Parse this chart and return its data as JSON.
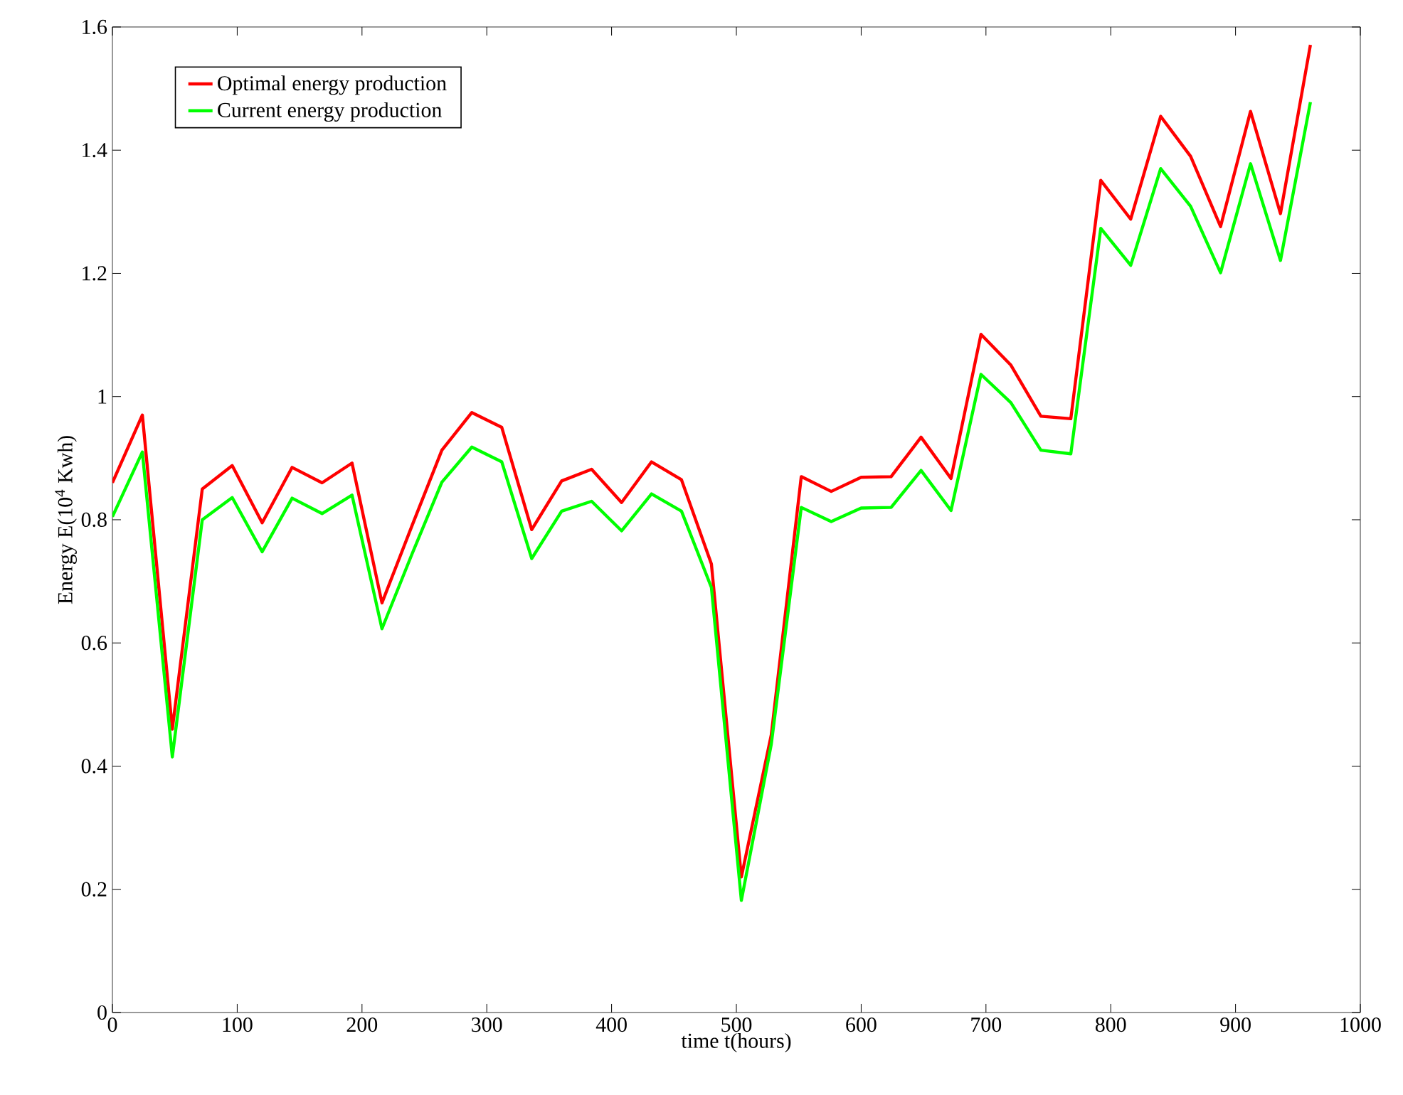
{
  "chart_data": {
    "type": "line",
    "xlabel": "time t(hours)",
    "ylabel": "Energy E(10$^{4}$ Kwh)",
    "x": [
      0,
      24,
      48,
      72,
      96,
      120,
      144,
      168,
      192,
      216,
      240,
      264,
      288,
      312,
      336,
      360,
      384,
      408,
      432,
      456,
      480,
      504,
      528,
      552,
      576,
      600,
      624,
      648,
      672,
      696,
      720,
      744,
      768,
      792,
      816,
      840,
      864,
      888,
      912,
      936,
      960
    ],
    "series": [
      {
        "name": "Optimal energy production",
        "color": "#ff0000",
        "values": [
          0.86,
          0.97,
          0.46,
          0.85,
          0.888,
          0.795,
          0.885,
          0.86,
          0.892,
          0.665,
          0.79,
          0.913,
          0.974,
          0.95,
          0.784,
          0.863,
          0.882,
          0.828,
          0.894,
          0.865,
          0.728,
          0.22,
          0.451,
          0.87,
          0.846,
          0.869,
          0.87,
          0.934,
          0.867,
          1.101,
          1.051,
          0.968,
          0.964,
          1.351,
          1.288,
          1.455,
          1.39,
          1.276,
          1.463,
          1.297,
          1.571
        ]
      },
      {
        "name": "Current energy production",
        "color": "#00ff00",
        "values": [
          0.805,
          0.91,
          0.415,
          0.8,
          0.836,
          0.748,
          0.835,
          0.81,
          0.84,
          0.623,
          0.744,
          0.861,
          0.918,
          0.894,
          0.737,
          0.814,
          0.83,
          0.782,
          0.842,
          0.814,
          0.69,
          0.182,
          0.436,
          0.82,
          0.797,
          0.819,
          0.82,
          0.88,
          0.815,
          1.036,
          0.99,
          0.913,
          0.907,
          1.273,
          1.213,
          1.37,
          1.309,
          1.201,
          1.378,
          1.221,
          1.478
        ]
      }
    ],
    "xlim": [
      0,
      1000
    ],
    "xticks": [
      0,
      100,
      200,
      300,
      400,
      500,
      600,
      700,
      800,
      900,
      1000
    ],
    "ylim": [
      0,
      1.6
    ],
    "yticks": [
      0,
      0.2,
      0.4,
      0.6,
      0.8,
      1,
      1.2,
      1.4,
      1.6
    ],
    "legend": "top left",
    "grid": false,
    "marker": "none",
    "line_style": "solid"
  }
}
